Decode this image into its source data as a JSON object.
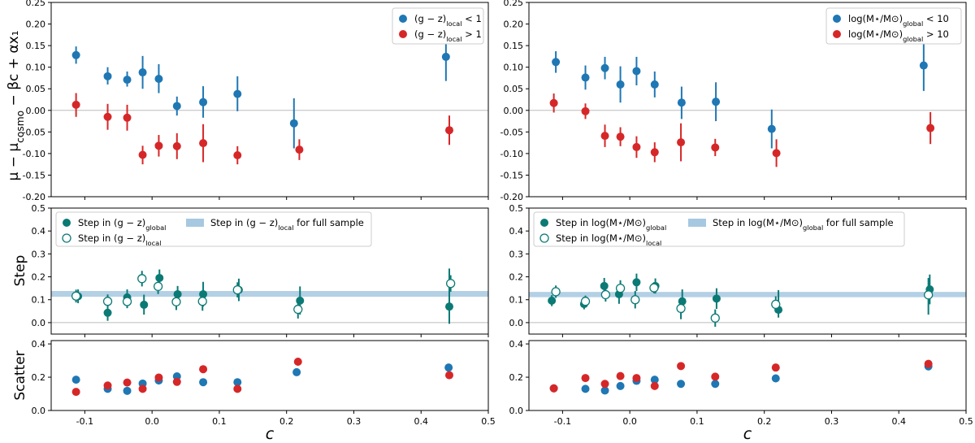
{
  "figure": {
    "xlabel": "c"
  },
  "chart_data": [
    {
      "id": "top-left",
      "type": "scatter",
      "ylabel": "μ − μcosmo − βc + αx₁",
      "xlim": [
        -0.15,
        0.5
      ],
      "ylim": [
        -0.2,
        0.25
      ],
      "yticks": [
        "-0.20",
        "-0.15",
        "-0.10",
        "-0.05",
        "0.00",
        "0.05",
        "0.10",
        "0.15",
        "0.20",
        "0.25"
      ],
      "xticks": [
        "-0.1",
        "0.0",
        "0.1",
        "0.2",
        "0.3",
        "0.4",
        "0.5"
      ],
      "zero_line": true,
      "legend": "top-right",
      "series": [
        {
          "name": "(g − z)local < 1",
          "color": "#1f77b4",
          "style": "filled",
          "points": [
            {
              "x": -0.113,
              "y": 0.128,
              "lo": 0.108,
              "hi": 0.148
            },
            {
              "x": -0.066,
              "y": 0.079,
              "lo": 0.06,
              "hi": 0.1
            },
            {
              "x": -0.037,
              "y": 0.071,
              "lo": 0.055,
              "hi": 0.09
            },
            {
              "x": -0.014,
              "y": 0.088,
              "lo": 0.05,
              "hi": 0.126
            },
            {
              "x": 0.01,
              "y": 0.073,
              "lo": 0.04,
              "hi": 0.107
            },
            {
              "x": 0.037,
              "y": 0.01,
              "lo": -0.012,
              "hi": 0.032
            },
            {
              "x": 0.076,
              "y": 0.019,
              "lo": -0.017,
              "hi": 0.056
            },
            {
              "x": 0.127,
              "y": 0.038,
              "lo": -0.002,
              "hi": 0.079
            },
            {
              "x": 0.211,
              "y": -0.03,
              "lo": -0.088,
              "hi": 0.028
            },
            {
              "x": 0.437,
              "y": 0.124,
              "lo": 0.068,
              "hi": 0.18
            }
          ]
        },
        {
          "name": "(g − z)local > 1",
          "color": "#d62728",
          "style": "filled",
          "points": [
            {
              "x": -0.113,
              "y": 0.013,
              "lo": -0.015,
              "hi": 0.04
            },
            {
              "x": -0.066,
              "y": -0.015,
              "lo": -0.045,
              "hi": 0.015
            },
            {
              "x": -0.037,
              "y": -0.017,
              "lo": -0.047,
              "hi": 0.013
            },
            {
              "x": -0.014,
              "y": -0.103,
              "lo": -0.125,
              "hi": -0.082
            },
            {
              "x": 0.01,
              "y": -0.082,
              "lo": -0.107,
              "hi": -0.057
            },
            {
              "x": 0.037,
              "y": -0.083,
              "lo": -0.113,
              "hi": -0.053
            },
            {
              "x": 0.076,
              "y": -0.076,
              "lo": -0.12,
              "hi": -0.032
            },
            {
              "x": 0.127,
              "y": -0.104,
              "lo": -0.125,
              "hi": -0.083
            },
            {
              "x": 0.219,
              "y": -0.091,
              "lo": -0.115,
              "hi": -0.067
            },
            {
              "x": 0.442,
              "y": -0.046,
              "lo": -0.08,
              "hi": -0.012
            }
          ]
        }
      ]
    },
    {
      "id": "mid-left",
      "type": "scatter",
      "ylabel": "Step",
      "xlim": [
        -0.15,
        0.5
      ],
      "ylim": [
        -0.05,
        0.5
      ],
      "yticks": [
        "0.0",
        "0.1",
        "0.2",
        "0.3",
        "0.4",
        "0.5"
      ],
      "xticks": [
        "-0.1",
        "0.0",
        "0.1",
        "0.2",
        "0.3",
        "0.4",
        "0.5"
      ],
      "zero_line": true,
      "legend": "top-left",
      "band": {
        "name": "Step in (g − z)local for full sample",
        "lo": 0.113,
        "hi": 0.138,
        "color": "#a6c8e0"
      },
      "series": [
        {
          "name": "Step in (g − z)global",
          "color": "#0b7a75",
          "style": "filled",
          "points": [
            {
              "x": -0.11,
              "y": 0.115,
              "lo": 0.085,
              "hi": 0.145
            },
            {
              "x": -0.066,
              "y": 0.043,
              "lo": 0.008,
              "hi": 0.078
            },
            {
              "x": -0.037,
              "y": 0.11,
              "lo": 0.075,
              "hi": 0.145
            },
            {
              "x": -0.012,
              "y": 0.078,
              "lo": 0.035,
              "hi": 0.122
            },
            {
              "x": 0.011,
              "y": 0.195,
              "lo": 0.16,
              "hi": 0.232
            },
            {
              "x": 0.038,
              "y": 0.124,
              "lo": 0.088,
              "hi": 0.16
            },
            {
              "x": 0.076,
              "y": 0.124,
              "lo": 0.07,
              "hi": 0.178
            },
            {
              "x": 0.129,
              "y": 0.143,
              "lo": 0.094,
              "hi": 0.192
            },
            {
              "x": 0.22,
              "y": 0.096,
              "lo": 0.035,
              "hi": 0.158
            },
            {
              "x": 0.442,
              "y": 0.07,
              "lo": -0.005,
              "hi": 0.236
            }
          ]
        },
        {
          "name": "Step in (g − z)local",
          "color": "#0b7a75",
          "style": "open",
          "points": [
            {
              "x": -0.113,
              "y": 0.116,
              "lo": 0.088,
              "hi": 0.144
            },
            {
              "x": -0.066,
              "y": 0.093,
              "lo": 0.063,
              "hi": 0.123
            },
            {
              "x": -0.037,
              "y": 0.092,
              "lo": 0.063,
              "hi": 0.121
            },
            {
              "x": -0.015,
              "y": 0.192,
              "lo": 0.158,
              "hi": 0.226
            },
            {
              "x": 0.009,
              "y": 0.158,
              "lo": 0.125,
              "hi": 0.191
            },
            {
              "x": 0.036,
              "y": 0.091,
              "lo": 0.055,
              "hi": 0.127
            },
            {
              "x": 0.075,
              "y": 0.093,
              "lo": 0.052,
              "hi": 0.134
            },
            {
              "x": 0.127,
              "y": 0.143,
              "lo": 0.11,
              "hi": 0.176
            },
            {
              "x": 0.217,
              "y": 0.058,
              "lo": 0.018,
              "hi": 0.098
            },
            {
              "x": 0.444,
              "y": 0.171,
              "lo": 0.135,
              "hi": 0.207
            }
          ]
        }
      ]
    },
    {
      "id": "bot-left",
      "type": "scatter",
      "ylabel": "Scatter",
      "xlim": [
        -0.15,
        0.5
      ],
      "ylim": [
        0.0,
        0.42
      ],
      "yticks": [
        "0.0",
        "0.2",
        "0.4"
      ],
      "xticks": [
        "-0.1",
        "0.0",
        "0.1",
        "0.2",
        "0.3",
        "0.4",
        "0.5"
      ],
      "xlabel": "c",
      "zero_line": false,
      "series": [
        {
          "name": "(g − z)local < 1",
          "color": "#1f77b4",
          "style": "filled",
          "points": [
            {
              "x": -0.113,
              "y": 0.185
            },
            {
              "x": -0.066,
              "y": 0.13
            },
            {
              "x": -0.037,
              "y": 0.118
            },
            {
              "x": -0.014,
              "y": 0.162
            },
            {
              "x": 0.01,
              "y": 0.18
            },
            {
              "x": 0.037,
              "y": 0.205
            },
            {
              "x": 0.076,
              "y": 0.17
            },
            {
              "x": 0.127,
              "y": 0.17
            },
            {
              "x": 0.215,
              "y": 0.23
            },
            {
              "x": 0.441,
              "y": 0.258
            }
          ]
        },
        {
          "name": "(g − z)local > 1",
          "color": "#d62728",
          "style": "filled",
          "points": [
            {
              "x": -0.113,
              "y": 0.112
            },
            {
              "x": -0.066,
              "y": 0.15
            },
            {
              "x": -0.037,
              "y": 0.168
            },
            {
              "x": -0.014,
              "y": 0.13
            },
            {
              "x": 0.01,
              "y": 0.198
            },
            {
              "x": 0.037,
              "y": 0.172
            },
            {
              "x": 0.076,
              "y": 0.248
            },
            {
              "x": 0.127,
              "y": 0.13
            },
            {
              "x": 0.217,
              "y": 0.293,
              "lo": 0.27,
              "hi": 0.316
            },
            {
              "x": 0.442,
              "y": 0.212
            }
          ]
        }
      ]
    },
    {
      "id": "top-right",
      "type": "scatter",
      "ylabel": "",
      "xlim": [
        -0.15,
        0.5
      ],
      "ylim": [
        -0.2,
        0.25
      ],
      "yticks": [
        "-0.20",
        "-0.15",
        "-0.10",
        "-0.05",
        "0.00",
        "0.05",
        "0.10",
        "0.15",
        "0.20",
        "0.25"
      ],
      "xticks": [
        "-0.1",
        "0.0",
        "0.1",
        "0.2",
        "0.3",
        "0.4",
        "0.5"
      ],
      "zero_line": true,
      "legend": "top-right",
      "series": [
        {
          "name": "log(M⋆/M⊙)global < 10",
          "color": "#1f77b4",
          "style": "filled",
          "points": [
            {
              "x": -0.11,
              "y": 0.112,
              "lo": 0.087,
              "hi": 0.137
            },
            {
              "x": -0.066,
              "y": 0.076,
              "lo": 0.048,
              "hi": 0.104
            },
            {
              "x": -0.037,
              "y": 0.098,
              "lo": 0.072,
              "hi": 0.124
            },
            {
              "x": -0.014,
              "y": 0.06,
              "lo": 0.018,
              "hi": 0.102
            },
            {
              "x": 0.01,
              "y": 0.091,
              "lo": 0.058,
              "hi": 0.124
            },
            {
              "x": 0.037,
              "y": 0.06,
              "lo": 0.03,
              "hi": 0.09
            },
            {
              "x": 0.077,
              "y": 0.018,
              "lo": -0.02,
              "hi": 0.055
            },
            {
              "x": 0.128,
              "y": 0.02,
              "lo": -0.025,
              "hi": 0.065
            },
            {
              "x": 0.211,
              "y": -0.043,
              "lo": -0.088,
              "hi": 0.002
            },
            {
              "x": 0.437,
              "y": 0.104,
              "lo": 0.045,
              "hi": 0.163
            }
          ]
        },
        {
          "name": "log(M⋆/M⊙)global > 10",
          "color": "#d62728",
          "style": "filled",
          "points": [
            {
              "x": -0.113,
              "y": 0.017,
              "lo": -0.005,
              "hi": 0.039
            },
            {
              "x": -0.066,
              "y": -0.002,
              "lo": -0.02,
              "hi": 0.016
            },
            {
              "x": -0.037,
              "y": -0.059,
              "lo": -0.085,
              "hi": -0.033
            },
            {
              "x": -0.014,
              "y": -0.061,
              "lo": -0.083,
              "hi": -0.039
            },
            {
              "x": 0.01,
              "y": -0.085,
              "lo": -0.11,
              "hi": -0.06
            },
            {
              "x": 0.037,
              "y": -0.097,
              "lo": -0.12,
              "hi": -0.074
            },
            {
              "x": 0.076,
              "y": -0.074,
              "lo": -0.118,
              "hi": -0.03
            },
            {
              "x": 0.127,
              "y": -0.086,
              "lo": -0.106,
              "hi": -0.066
            },
            {
              "x": 0.218,
              "y": -0.099,
              "lo": -0.131,
              "hi": -0.067
            },
            {
              "x": 0.447,
              "y": -0.041,
              "lo": -0.078,
              "hi": -0.004
            }
          ]
        }
      ]
    },
    {
      "id": "mid-right",
      "type": "scatter",
      "ylabel": "",
      "xlim": [
        -0.15,
        0.5
      ],
      "ylim": [
        -0.05,
        0.5
      ],
      "yticks": [
        "0.0",
        "0.1",
        "0.2",
        "0.3",
        "0.4",
        "0.5"
      ],
      "xticks": [
        "-0.1",
        "0.0",
        "0.1",
        "0.2",
        "0.3",
        "0.4",
        "0.5"
      ],
      "zero_line": true,
      "legend": "top-left",
      "band": {
        "name": "Step in log(M⋆/M⊙)global for full sample",
        "lo": 0.111,
        "hi": 0.134,
        "color": "#a6c8e0"
      },
      "series": [
        {
          "name": "Step in log(M⋆/M⊙)global",
          "color": "#0b7a75",
          "style": "filled",
          "points": [
            {
              "x": -0.116,
              "y": 0.096,
              "lo": 0.072,
              "hi": 0.12
            },
            {
              "x": -0.068,
              "y": 0.081,
              "lo": 0.058,
              "hi": 0.104
            },
            {
              "x": -0.038,
              "y": 0.16,
              "lo": 0.125,
              "hi": 0.195
            },
            {
              "x": -0.016,
              "y": 0.124,
              "lo": 0.082,
              "hi": 0.166
            },
            {
              "x": 0.01,
              "y": 0.176,
              "lo": 0.138,
              "hi": 0.214
            },
            {
              "x": 0.038,
              "y": 0.16,
              "lo": 0.127,
              "hi": 0.193
            },
            {
              "x": 0.078,
              "y": 0.093,
              "lo": 0.042,
              "hi": 0.145
            },
            {
              "x": 0.129,
              "y": 0.105,
              "lo": 0.06,
              "hi": 0.15
            },
            {
              "x": 0.221,
              "y": 0.056,
              "lo": 0.022,
              "hi": 0.142
            },
            {
              "x": 0.446,
              "y": 0.145,
              "lo": 0.08,
              "hi": 0.21
            }
          ]
        },
        {
          "name": "Step in log(M⋆/M⊙)local",
          "color": "#0b7a75",
          "style": "open",
          "points": [
            {
              "x": -0.11,
              "y": 0.135,
              "lo": 0.108,
              "hi": 0.162
            },
            {
              "x": -0.066,
              "y": 0.093,
              "lo": 0.068,
              "hi": 0.118
            },
            {
              "x": -0.036,
              "y": 0.122,
              "lo": 0.092,
              "hi": 0.152
            },
            {
              "x": -0.014,
              "y": 0.15,
              "lo": 0.115,
              "hi": 0.185
            },
            {
              "x": 0.008,
              "y": 0.1,
              "lo": 0.062,
              "hi": 0.138
            },
            {
              "x": 0.036,
              "y": 0.152,
              "lo": 0.128,
              "hi": 0.176
            },
            {
              "x": 0.076,
              "y": 0.062,
              "lo": 0.015,
              "hi": 0.109
            },
            {
              "x": 0.127,
              "y": 0.02,
              "lo": -0.018,
              "hi": 0.058
            },
            {
              "x": 0.217,
              "y": 0.08,
              "lo": 0.045,
              "hi": 0.115
            },
            {
              "x": 0.444,
              "y": 0.121,
              "lo": 0.035,
              "hi": 0.195
            }
          ]
        }
      ]
    },
    {
      "id": "bot-right",
      "type": "scatter",
      "ylabel": "",
      "xlim": [
        -0.15,
        0.5
      ],
      "ylim": [
        0.0,
        0.42
      ],
      "yticks": [
        "0.0",
        "0.2",
        "0.4"
      ],
      "xticks": [
        "-0.1",
        "0.0",
        "0.1",
        "0.2",
        "0.3",
        "0.4",
        "0.5"
      ],
      "xlabel": "c",
      "zero_line": false,
      "series": [
        {
          "name": "log(M⋆/M⊙)global < 10",
          "color": "#1f77b4",
          "style": "filled",
          "points": [
            {
              "x": -0.113,
              "y": 0.133
            },
            {
              "x": -0.066,
              "y": 0.13
            },
            {
              "x": -0.037,
              "y": 0.12
            },
            {
              "x": -0.014,
              "y": 0.147
            },
            {
              "x": 0.01,
              "y": 0.178
            },
            {
              "x": 0.037,
              "y": 0.185
            },
            {
              "x": 0.076,
              "y": 0.16
            },
            {
              "x": 0.127,
              "y": 0.16
            },
            {
              "x": 0.217,
              "y": 0.193
            },
            {
              "x": 0.444,
              "y": 0.265
            }
          ]
        },
        {
          "name": "log(M⋆/M⊙)global > 10",
          "color": "#d62728",
          "style": "filled",
          "points": [
            {
              "x": -0.113,
              "y": 0.133
            },
            {
              "x": -0.066,
              "y": 0.195
            },
            {
              "x": -0.037,
              "y": 0.16
            },
            {
              "x": -0.014,
              "y": 0.207
            },
            {
              "x": 0.01,
              "y": 0.195
            },
            {
              "x": 0.037,
              "y": 0.147
            },
            {
              "x": 0.076,
              "y": 0.267
            },
            {
              "x": 0.127,
              "y": 0.203
            },
            {
              "x": 0.217,
              "y": 0.258
            },
            {
              "x": 0.444,
              "y": 0.28,
              "lo": 0.262,
              "hi": 0.3
            }
          ]
        }
      ]
    }
  ]
}
